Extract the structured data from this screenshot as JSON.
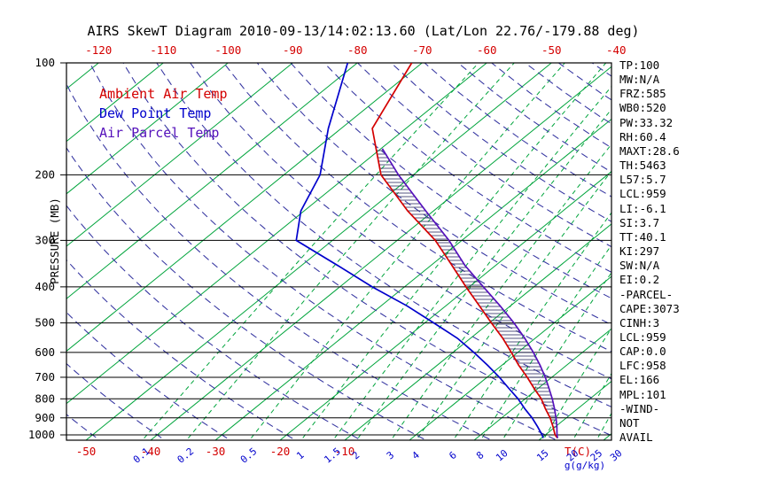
{
  "title": "AIRS SkewT Diagram 2010-09-13/14:02:13.60 (Lat/Lon 22.76/-179.88 deg)",
  "legend": {
    "items": [
      {
        "label": "Ambient Air Temp",
        "color": "#d40000"
      },
      {
        "label": "Dew Point Temp",
        "color": "#0000cc"
      },
      {
        "label": "Air Parcel Temp",
        "color": "#5511bb"
      }
    ]
  },
  "axes": {
    "pressure_label": "PRESSURE (MB)",
    "pressure_ticks": [
      100,
      200,
      300,
      400,
      500,
      600,
      700,
      800,
      900,
      1000
    ],
    "top_temp_ticks": [
      -120,
      -110,
      -100,
      -90,
      -80,
      -70,
      -60,
      -50,
      -40
    ],
    "bottom_temp_ticks": [
      -50,
      -40,
      -30,
      -20,
      -10
    ],
    "temp_unit": "T(C)",
    "mixing_ratio_ticks": [
      0.1,
      0.2,
      0.5,
      1,
      1.5,
      2,
      3,
      4,
      6,
      8,
      10,
      15,
      20,
      25,
      30
    ],
    "mixing_unit": "g(g/kg)"
  },
  "stats": [
    "TP:100",
    "MW:N/A",
    "FRZ:585",
    "WB0:520",
    "PW:33.32",
    "RH:60.4",
    "MAXT:28.6",
    "TH:5463",
    "L57:5.7",
    "LCL:959",
    "LI:-6.1",
    "SI:3.7",
    "TT:40.1",
    "KI:297",
    "SW:N/A",
    "EI:0.2",
    "-PARCEL-",
    "CAPE:3073",
    "CINH:3",
    "LCL:959",
    "CAP:0.0",
    "LFC:958",
    "EL:166",
    "MPL:101",
    "-WIND-",
    "NOT",
    "AVAIL"
  ],
  "colors": {
    "isotherm": "#00a43c",
    "mixing": "#00a43c",
    "adiabat": "#3434a0",
    "pressure_line": "#000000",
    "border": "#000000",
    "ambient": "#d40000",
    "dewpoint": "#0000cc",
    "parcel": "#5511bb",
    "hatch": "#2a2a60",
    "tick_red": "#d40000",
    "tick_blue": "#0000cc",
    "text": "#000000"
  },
  "chart_data": {
    "type": "line",
    "plot_style": "skew-t-log-p",
    "x_axis": {
      "label": "Temperature (C)",
      "skewed": true,
      "top_ticks": [
        -120,
        -110,
        -100,
        -90,
        -80,
        -70,
        -60,
        -50,
        -40
      ],
      "bottom_ticks": [
        -50,
        -40,
        -30,
        -20,
        -10
      ]
    },
    "y_axis": {
      "label": "PRESSURE (MB)",
      "scale": "log",
      "range": [
        100,
        1050
      ]
    },
    "grid": {
      "isotherms_c": {
        "min": -160,
        "max": 40,
        "step": 10
      },
      "dry_adiabats_c": {
        "min": -50,
        "max": 180,
        "step": 10
      },
      "mixing_ratio_g_kg": [
        0.1,
        0.2,
        0.5,
        1,
        1.5,
        2,
        3,
        4,
        6,
        8,
        10,
        15,
        20,
        25,
        30
      ]
    },
    "series": [
      {
        "name": "Ambient Air Temp",
        "color": "#d40000",
        "points": [
          [
            1020,
            22.5
          ],
          [
            1000,
            21.5
          ],
          [
            950,
            19.6
          ],
          [
            900,
            17.5
          ],
          [
            850,
            15.0
          ],
          [
            800,
            12.5
          ],
          [
            750,
            9.4
          ],
          [
            700,
            6.2
          ],
          [
            650,
            2.6
          ],
          [
            600,
            -1.0
          ],
          [
            550,
            -5.0
          ],
          [
            500,
            -9.7
          ],
          [
            450,
            -14.8
          ],
          [
            400,
            -20.5
          ],
          [
            350,
            -26.8
          ],
          [
            300,
            -34.1
          ],
          [
            250,
            -44.0
          ],
          [
            200,
            -55.0
          ],
          [
            150,
            -65.2
          ],
          [
            100,
            -71.6
          ]
        ]
      },
      {
        "name": "Dew Point Temp",
        "color": "#0000cc",
        "points": [
          [
            1020,
            20.3
          ],
          [
            1000,
            19.5
          ],
          [
            950,
            17.2
          ],
          [
            900,
            14.7
          ],
          [
            850,
            11.8
          ],
          [
            800,
            8.9
          ],
          [
            750,
            5.5
          ],
          [
            700,
            1.9
          ],
          [
            650,
            -2.2
          ],
          [
            600,
            -6.8
          ],
          [
            550,
            -12.0
          ],
          [
            500,
            -18.6
          ],
          [
            450,
            -26.0
          ],
          [
            400,
            -35.0
          ],
          [
            350,
            -44.5
          ],
          [
            300,
            -55.6
          ],
          [
            250,
            -60.5
          ],
          [
            200,
            -64.4
          ],
          [
            150,
            -72.0
          ],
          [
            100,
            -81.5
          ]
        ]
      },
      {
        "name": "Air Parcel Temp",
        "color": "#5511bb",
        "points": [
          [
            1020,
            22.5
          ],
          [
            1000,
            21.8
          ],
          [
            950,
            20.2
          ],
          [
            900,
            18.4
          ],
          [
            850,
            16.4
          ],
          [
            800,
            14.2
          ],
          [
            750,
            11.7
          ],
          [
            700,
            9.0
          ],
          [
            650,
            5.9
          ],
          [
            600,
            2.4
          ],
          [
            550,
            -1.6
          ],
          [
            500,
            -6.2
          ],
          [
            450,
            -11.6
          ],
          [
            400,
            -17.8
          ],
          [
            350,
            -24.8
          ],
          [
            300,
            -32.0
          ],
          [
            250,
            -41.2
          ],
          [
            200,
            -52.3
          ],
          [
            170,
            -59.8
          ]
        ]
      }
    ],
    "cape_hatch": {
      "between": [
        "Air Parcel Temp",
        "Ambient Air Temp"
      ],
      "from_mb": 955,
      "to_mb": 170
    }
  }
}
